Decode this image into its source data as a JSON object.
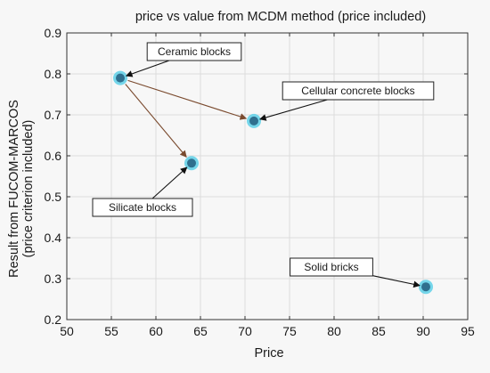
{
  "chart_data": {
    "type": "scatter",
    "title": "price vs value from MCDM method (price included)",
    "xlabel": "Price",
    "ylabel_lines": [
      "Result from FUCOM-MARCOS",
      "(price criterion included)"
    ],
    "xlim": [
      50,
      95
    ],
    "ylim": [
      0.2,
      0.9
    ],
    "x_ticks": [
      50,
      55,
      60,
      65,
      70,
      75,
      80,
      85,
      90,
      95
    ],
    "y_ticks": [
      0.2,
      0.3,
      0.4,
      0.5,
      0.6,
      0.7,
      0.8,
      0.9
    ],
    "y_tick_labels": [
      "0.2",
      "0.3",
      "0.4",
      "0.5",
      "0.6",
      "0.7",
      "0.8",
      "0.9"
    ],
    "grid": true,
    "points": [
      {
        "x": 56,
        "y": 0.79
      },
      {
        "x": 71,
        "y": 0.685
      },
      {
        "x": 64,
        "y": 0.582
      },
      {
        "x": 90.3,
        "y": 0.28
      }
    ],
    "annotations": [
      {
        "label": "Ceramic blocks",
        "point_index": 0
      },
      {
        "label": "Cellular concrete blocks",
        "point_index": 1
      },
      {
        "label": "Silicate blocks",
        "point_index": 2
      },
      {
        "label": "Solid bricks",
        "point_index": 3
      }
    ],
    "trend_arrows": [
      {
        "from": 0,
        "to": 1
      },
      {
        "from": 0,
        "to": 2
      }
    ],
    "colors": {
      "marker_fill": "#2f6f8e",
      "marker_halo": "#5ed0e8",
      "grid": "#dcdcdc",
      "trend_arrow": "#7a4a2e",
      "axis": "#333333"
    }
  }
}
